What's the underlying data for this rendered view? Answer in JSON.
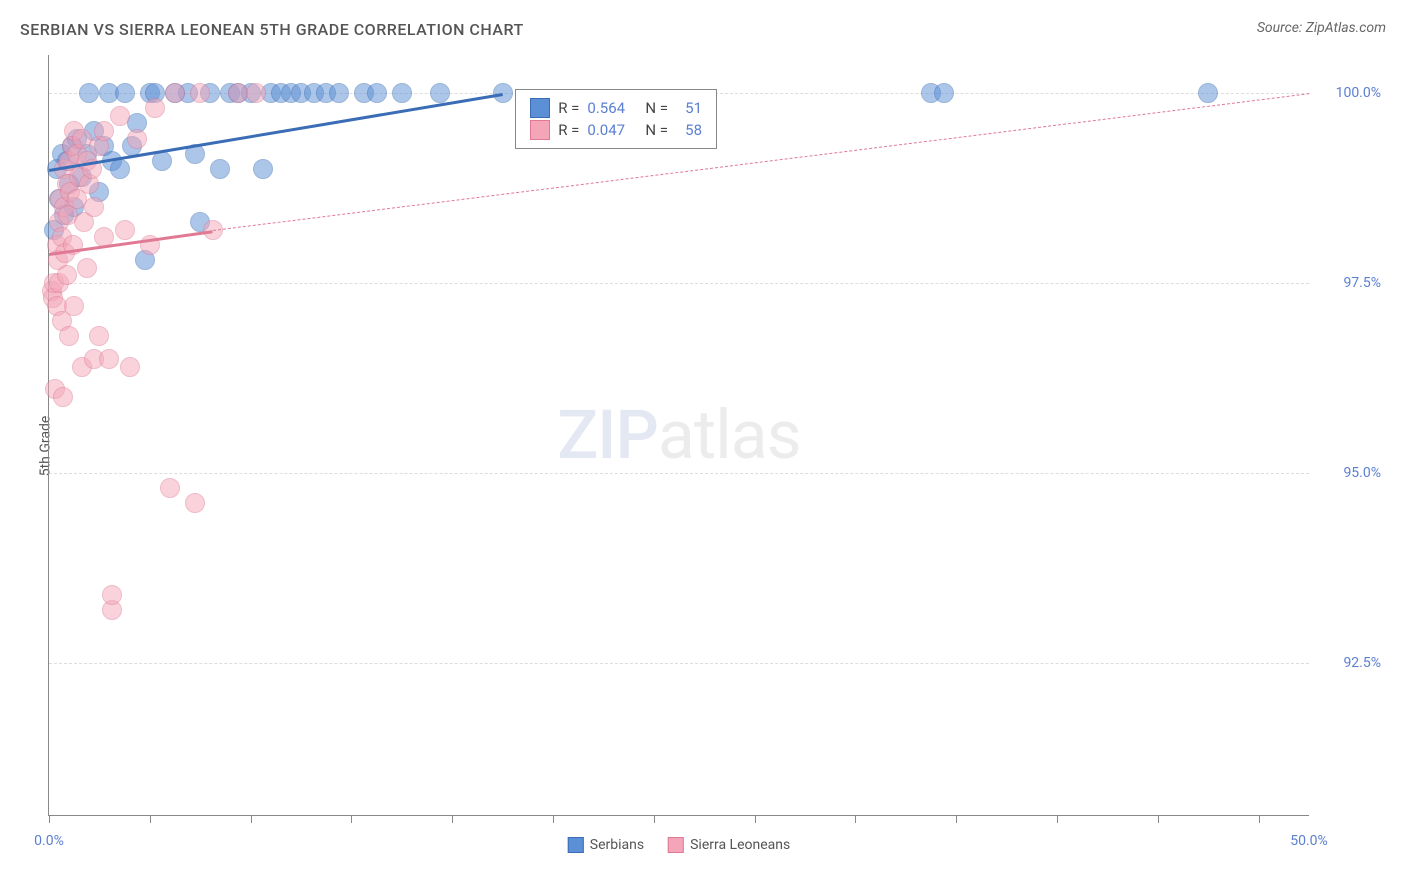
{
  "title": "SERBIAN VS SIERRA LEONEAN 5TH GRADE CORRELATION CHART",
  "source": "Source: ZipAtlas.com",
  "ylabel": "5th Grade",
  "watermark": {
    "zip": "ZIP",
    "atlas": "atlas"
  },
  "chart": {
    "type": "scatter",
    "xlim": [
      0.0,
      50.0
    ],
    "ylim": [
      90.5,
      100.5
    ],
    "yticks": [
      {
        "value": 92.5,
        "label": "92.5%"
      },
      {
        "value": 95.0,
        "label": "95.0%"
      },
      {
        "value": 97.5,
        "label": "97.5%"
      },
      {
        "value": 100.0,
        "label": "100.0%"
      }
    ],
    "xticks_major": [
      0.0,
      20.0,
      40.0
    ],
    "xticks_minor": [
      4.0,
      8.0,
      12.0,
      16.0,
      24.0,
      28.0,
      32.0,
      36.0,
      44.0,
      48.0
    ],
    "xlabels": [
      {
        "value": 0.0,
        "label": "0.0%"
      },
      {
        "value": 50.0,
        "label": "50.0%"
      }
    ],
    "background_color": "#ffffff",
    "grid_color": "#dddddd",
    "axis_color": "#888888",
    "marker_radius": 9,
    "marker_opacity": 0.5,
    "series": [
      {
        "key": "serbians",
        "label": "Serbians",
        "color": "#5b8fd6",
        "stroke": "#3a6db5",
        "R": "0.564",
        "N": "51",
        "trend": {
          "x1": 0.0,
          "y1": 99.0,
          "x2": 18.0,
          "y2": 100.0,
          "width": 3,
          "dashed": false
        },
        "points": [
          [
            0.2,
            98.2
          ],
          [
            0.3,
            99.0
          ],
          [
            0.4,
            98.6
          ],
          [
            0.5,
            99.2
          ],
          [
            0.6,
            98.4
          ],
          [
            0.7,
            99.1
          ],
          [
            0.8,
            98.8
          ],
          [
            0.9,
            99.3
          ],
          [
            1.0,
            98.5
          ],
          [
            1.1,
            99.4
          ],
          [
            1.3,
            98.9
          ],
          [
            1.5,
            99.2
          ],
          [
            1.6,
            100.0
          ],
          [
            1.8,
            99.5
          ],
          [
            2.0,
            98.7
          ],
          [
            2.2,
            99.3
          ],
          [
            2.4,
            100.0
          ],
          [
            2.5,
            99.1
          ],
          [
            2.8,
            99.0
          ],
          [
            3.0,
            100.0
          ],
          [
            3.3,
            99.3
          ],
          [
            3.5,
            99.6
          ],
          [
            3.8,
            97.8
          ],
          [
            4.0,
            100.0
          ],
          [
            4.2,
            100.0
          ],
          [
            4.5,
            99.1
          ],
          [
            5.0,
            100.0
          ],
          [
            5.5,
            100.0
          ],
          [
            5.8,
            99.2
          ],
          [
            6.0,
            98.3
          ],
          [
            6.4,
            100.0
          ],
          [
            6.8,
            99.0
          ],
          [
            7.2,
            100.0
          ],
          [
            7.5,
            100.0
          ],
          [
            8.0,
            100.0
          ],
          [
            8.5,
            99.0
          ],
          [
            8.8,
            100.0
          ],
          [
            9.2,
            100.0
          ],
          [
            9.6,
            100.0
          ],
          [
            10.0,
            100.0
          ],
          [
            10.5,
            100.0
          ],
          [
            11.0,
            100.0
          ],
          [
            11.5,
            100.0
          ],
          [
            12.5,
            100.0
          ],
          [
            13.0,
            100.0
          ],
          [
            14.0,
            100.0
          ],
          [
            15.5,
            100.0
          ],
          [
            18.0,
            100.0
          ],
          [
            35.0,
            100.0
          ],
          [
            35.5,
            100.0
          ],
          [
            46.0,
            100.0
          ]
        ]
      },
      {
        "key": "sierra",
        "label": "Sierra Leoneans",
        "color": "#f4a6b8",
        "stroke": "#e07a94",
        "R": "0.047",
        "N": "58",
        "trend_solid": {
          "x1": 0.0,
          "y1": 97.9,
          "x2": 6.5,
          "y2": 98.2,
          "width": 3
        },
        "trend_dashed": {
          "x1": 6.5,
          "y1": 98.2,
          "x2": 50.0,
          "y2": 100.0,
          "width": 1
        },
        "points": [
          [
            0.1,
            97.4
          ],
          [
            0.15,
            97.3
          ],
          [
            0.2,
            97.5
          ],
          [
            0.25,
            96.1
          ],
          [
            0.3,
            97.2
          ],
          [
            0.3,
            98.0
          ],
          [
            0.35,
            97.8
          ],
          [
            0.4,
            98.3
          ],
          [
            0.4,
            97.5
          ],
          [
            0.45,
            98.6
          ],
          [
            0.5,
            98.1
          ],
          [
            0.5,
            97.0
          ],
          [
            0.55,
            96.0
          ],
          [
            0.6,
            98.5
          ],
          [
            0.6,
            99.0
          ],
          [
            0.65,
            97.9
          ],
          [
            0.7,
            98.8
          ],
          [
            0.7,
            97.6
          ],
          [
            0.75,
            98.4
          ],
          [
            0.8,
            99.1
          ],
          [
            0.8,
            96.8
          ],
          [
            0.85,
            98.7
          ],
          [
            0.9,
            99.3
          ],
          [
            0.95,
            98.0
          ],
          [
            1.0,
            99.5
          ],
          [
            1.0,
            97.2
          ],
          [
            1.1,
            98.6
          ],
          [
            1.1,
            99.2
          ],
          [
            1.2,
            98.9
          ],
          [
            1.3,
            96.4
          ],
          [
            1.3,
            99.4
          ],
          [
            1.4,
            98.3
          ],
          [
            1.5,
            99.1
          ],
          [
            1.5,
            97.7
          ],
          [
            1.6,
            98.8
          ],
          [
            1.7,
            99.0
          ],
          [
            1.8,
            96.5
          ],
          [
            1.8,
            98.5
          ],
          [
            2.0,
            99.3
          ],
          [
            2.0,
            96.8
          ],
          [
            2.2,
            98.1
          ],
          [
            2.2,
            99.5
          ],
          [
            2.4,
            96.5
          ],
          [
            2.5,
            93.2
          ],
          [
            2.5,
            93.4
          ],
          [
            2.8,
            99.7
          ],
          [
            3.0,
            98.2
          ],
          [
            3.2,
            96.4
          ],
          [
            3.5,
            99.4
          ],
          [
            4.0,
            98.0
          ],
          [
            4.2,
            99.8
          ],
          [
            4.8,
            94.8
          ],
          [
            5.0,
            100.0
          ],
          [
            5.8,
            94.6
          ],
          [
            6.0,
            100.0
          ],
          [
            6.5,
            98.2
          ],
          [
            7.5,
            100.0
          ],
          [
            8.2,
            100.0
          ]
        ]
      }
    ],
    "stats_box": {
      "R_label": "R =",
      "N_label": "N =",
      "value_color": "#5b7fd1",
      "label_color": "#444444"
    },
    "bottom_legend_labels": [
      "Serbians",
      "Sierra Leoneans"
    ]
  }
}
